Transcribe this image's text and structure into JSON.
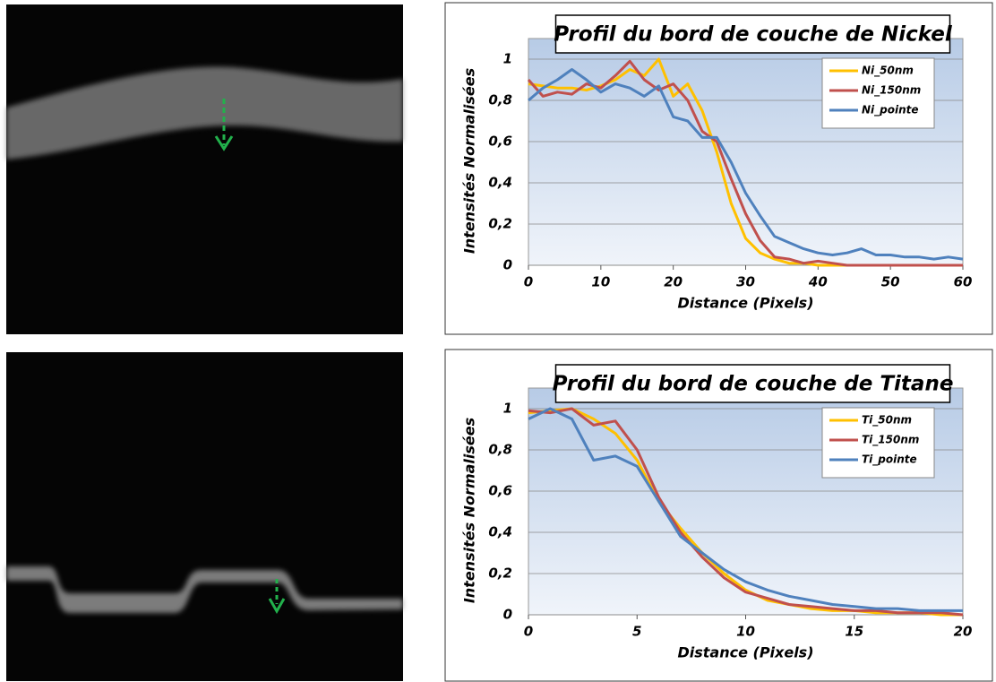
{
  "chart_data": [
    {
      "type": "line",
      "title": "Profil du bord de couche de Nickel",
      "xlabel": "Distance (Pixels)",
      "ylabel": "Intensités Normalisées",
      "x": [
        0,
        2,
        4,
        6,
        8,
        10,
        12,
        14,
        16,
        18,
        20,
        22,
        24,
        26,
        28,
        30,
        32,
        34,
        36,
        38,
        40,
        42,
        44,
        46,
        48,
        50,
        52,
        54,
        56,
        58,
        60
      ],
      "series": [
        {
          "name": "Ni_50nm",
          "color": "#ffc000",
          "values": [
            0.88,
            0.87,
            0.86,
            0.86,
            0.85,
            0.87,
            0.9,
            0.95,
            0.92,
            1.0,
            0.82,
            0.88,
            0.75,
            0.55,
            0.3,
            0.13,
            0.06,
            0.03,
            0.01,
            0.01,
            0,
            0,
            0,
            0,
            0,
            0,
            0,
            0,
            0,
            0,
            0
          ]
        },
        {
          "name": "Ni_150nm",
          "color": "#c0504d",
          "values": [
            0.9,
            0.82,
            0.84,
            0.83,
            0.88,
            0.86,
            0.92,
            0.99,
            0.9,
            0.85,
            0.88,
            0.8,
            0.65,
            0.6,
            0.42,
            0.25,
            0.12,
            0.04,
            0.03,
            0.01,
            0.02,
            0.01,
            0,
            0,
            0,
            0,
            0,
            0,
            0,
            0,
            0
          ]
        },
        {
          "name": "Ni_pointe",
          "color": "#4f81bd",
          "values": [
            0.8,
            0.86,
            0.9,
            0.95,
            0.9,
            0.84,
            0.88,
            0.86,
            0.82,
            0.87,
            0.72,
            0.7,
            0.62,
            0.62,
            0.5,
            0.35,
            0.24,
            0.14,
            0.11,
            0.08,
            0.06,
            0.05,
            0.06,
            0.08,
            0.05,
            0.05,
            0.04,
            0.04,
            0.03,
            0.04,
            0.03
          ]
        }
      ],
      "xlim": [
        0,
        60
      ],
      "ylim": [
        0,
        1.1
      ],
      "xticks": [
        0,
        10,
        20,
        30,
        40,
        50,
        60
      ],
      "yticks": [
        0,
        {
          "value": 0.2,
          "label": "0,2"
        },
        {
          "value": 0.4,
          "label": "0,4"
        },
        {
          "value": 0.6,
          "label": "0,6"
        },
        {
          "value": 0.8,
          "label": "0,8"
        },
        1
      ],
      "grid": true,
      "legend": "upper right"
    },
    {
      "type": "line",
      "title": "Profil du bord de couche de Titane",
      "xlabel": "Distance (Pixels)",
      "ylabel": "Intensités Normalisées",
      "x": [
        0,
        1,
        2,
        3,
        4,
        5,
        6,
        7,
        8,
        9,
        10,
        11,
        12,
        13,
        14,
        15,
        16,
        17,
        18,
        19,
        20
      ],
      "series": [
        {
          "name": "Ti_50nm",
          "color": "#ffc000",
          "values": [
            0.98,
            0.99,
            1.0,
            0.95,
            0.88,
            0.75,
            0.55,
            0.42,
            0.3,
            0.2,
            0.12,
            0.07,
            0.05,
            0.03,
            0.02,
            0.02,
            0.01,
            0.01,
            0.01,
            0,
            0
          ]
        },
        {
          "name": "Ti_150nm",
          "color": "#c0504d",
          "values": [
            0.99,
            0.98,
            1.0,
            0.92,
            0.94,
            0.8,
            0.57,
            0.4,
            0.28,
            0.18,
            0.11,
            0.08,
            0.05,
            0.04,
            0.03,
            0.02,
            0.02,
            0.01,
            0.01,
            0.01,
            0
          ]
        },
        {
          "name": "Ti_pointe",
          "color": "#4f81bd",
          "values": [
            0.95,
            1.0,
            0.95,
            0.75,
            0.77,
            0.72,
            0.55,
            0.38,
            0.3,
            0.22,
            0.16,
            0.12,
            0.09,
            0.07,
            0.05,
            0.04,
            0.03,
            0.03,
            0.02,
            0.02,
            0.02
          ]
        }
      ],
      "xlim": [
        0,
        20
      ],
      "ylim": [
        0,
        1.1
      ],
      "xticks": [
        0,
        5,
        10,
        15,
        20
      ],
      "yticks": [
        0,
        {
          "value": 0.2,
          "label": "0,2"
        },
        {
          "value": 0.4,
          "label": "0,4"
        },
        {
          "value": 0.6,
          "label": "0,6"
        },
        {
          "value": 0.8,
          "label": "0,8"
        },
        1
      ],
      "grid": true,
      "legend": "upper right"
    }
  ]
}
